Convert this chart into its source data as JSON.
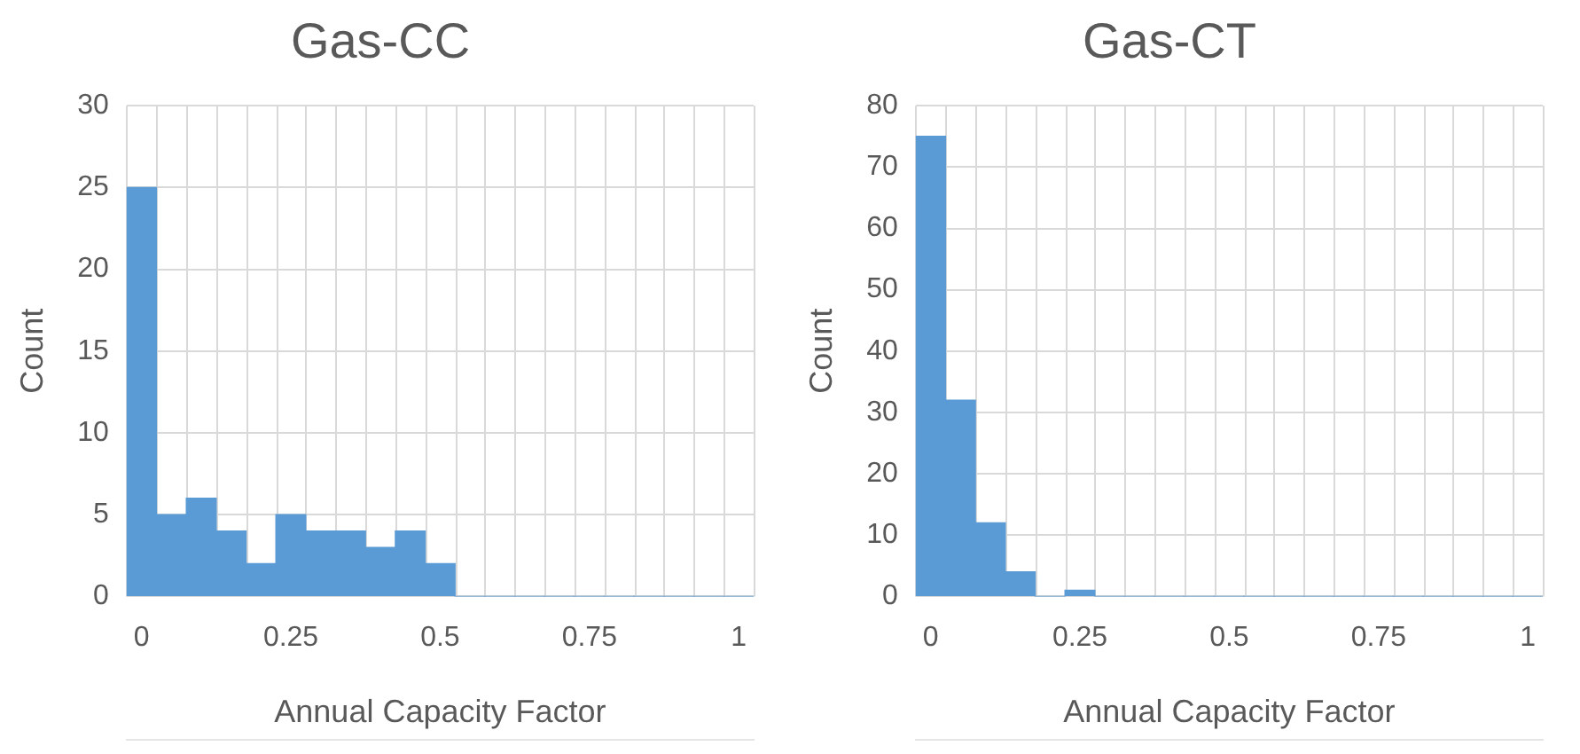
{
  "chart_data": [
    {
      "type": "histogram",
      "title": "Gas-CC",
      "xlabel": "Annual Capacity Factor",
      "ylabel": "Count",
      "color": "#5b9bd5",
      "grid": true,
      "bins": [
        -0.025,
        0.025,
        0.075,
        0.125,
        0.175,
        0.225,
        0.275,
        0.325,
        0.375,
        0.425,
        0.475,
        0.525,
        0.575,
        0.625,
        0.675,
        0.725,
        0.775,
        0.825,
        0.875,
        0.925,
        0.975,
        1.025
      ],
      "values": [
        25,
        5,
        6,
        4,
        2,
        5,
        4,
        4,
        3,
        4,
        2,
        0,
        0,
        0,
        0,
        0,
        0,
        0,
        0,
        0,
        0
      ],
      "xlim": [
        -0.025,
        1.025
      ],
      "xticks": [
        0,
        0.25,
        0.5,
        0.75,
        1
      ],
      "ylim": [
        0,
        30
      ],
      "yticks": [
        0,
        5,
        10,
        15,
        20,
        25,
        30
      ]
    },
    {
      "type": "histogram",
      "title": "Gas-CT",
      "xlabel": "Annual Capacity Factor",
      "ylabel": "Count",
      "color": "#5b9bd5",
      "grid": true,
      "bins": [
        -0.025,
        0.025,
        0.075,
        0.125,
        0.175,
        0.225,
        0.275,
        0.325,
        0.375,
        0.425,
        0.475,
        0.525,
        0.575,
        0.625,
        0.675,
        0.725,
        0.775,
        0.825,
        0.875,
        0.925,
        0.975,
        1.025
      ],
      "values": [
        75,
        32,
        12,
        4,
        0,
        1,
        0,
        0,
        0,
        0,
        0,
        0,
        0,
        0,
        0,
        0,
        0,
        0,
        0,
        0,
        0
      ],
      "xlim": [
        -0.025,
        1.025
      ],
      "xticks": [
        0,
        0.25,
        0.5,
        0.75,
        1
      ],
      "ylim": [
        0,
        80
      ],
      "yticks": [
        0,
        10,
        20,
        30,
        40,
        50,
        60,
        70,
        80
      ]
    }
  ]
}
